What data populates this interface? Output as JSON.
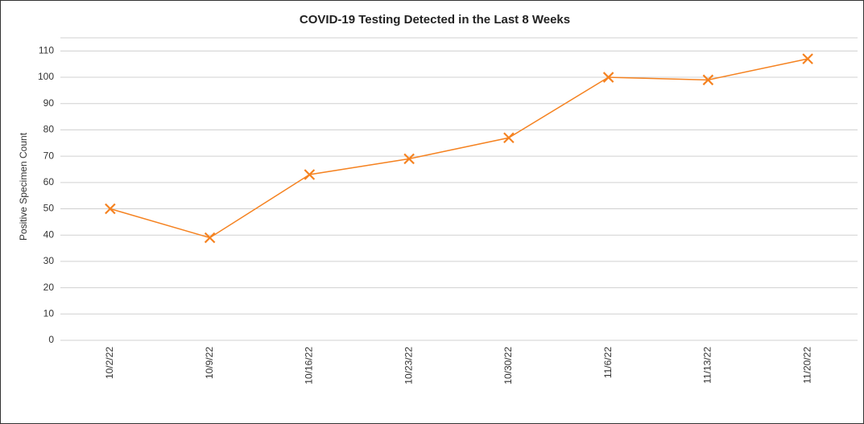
{
  "chart_data": {
    "type": "line",
    "title": "COVID-19 Testing Detected in the Last 8 Weeks",
    "y_label": "Positive Specimen Count",
    "categories": [
      "10/2/22",
      "10/9/22",
      "10/16/22",
      "10/23/22",
      "10/30/22",
      "11/6/22",
      "11/13/22",
      "11/20/22"
    ],
    "series": [
      {
        "name": "Positive Specimen Count",
        "color": "#f58220",
        "values": [
          50,
          39,
          63,
          69,
          77,
          100,
          99,
          107
        ]
      }
    ],
    "ylim": [
      0,
      115
    ],
    "yticks": [
      0,
      10,
      20,
      30,
      40,
      50,
      60,
      70,
      80,
      90,
      100,
      110
    ],
    "grid": true
  }
}
